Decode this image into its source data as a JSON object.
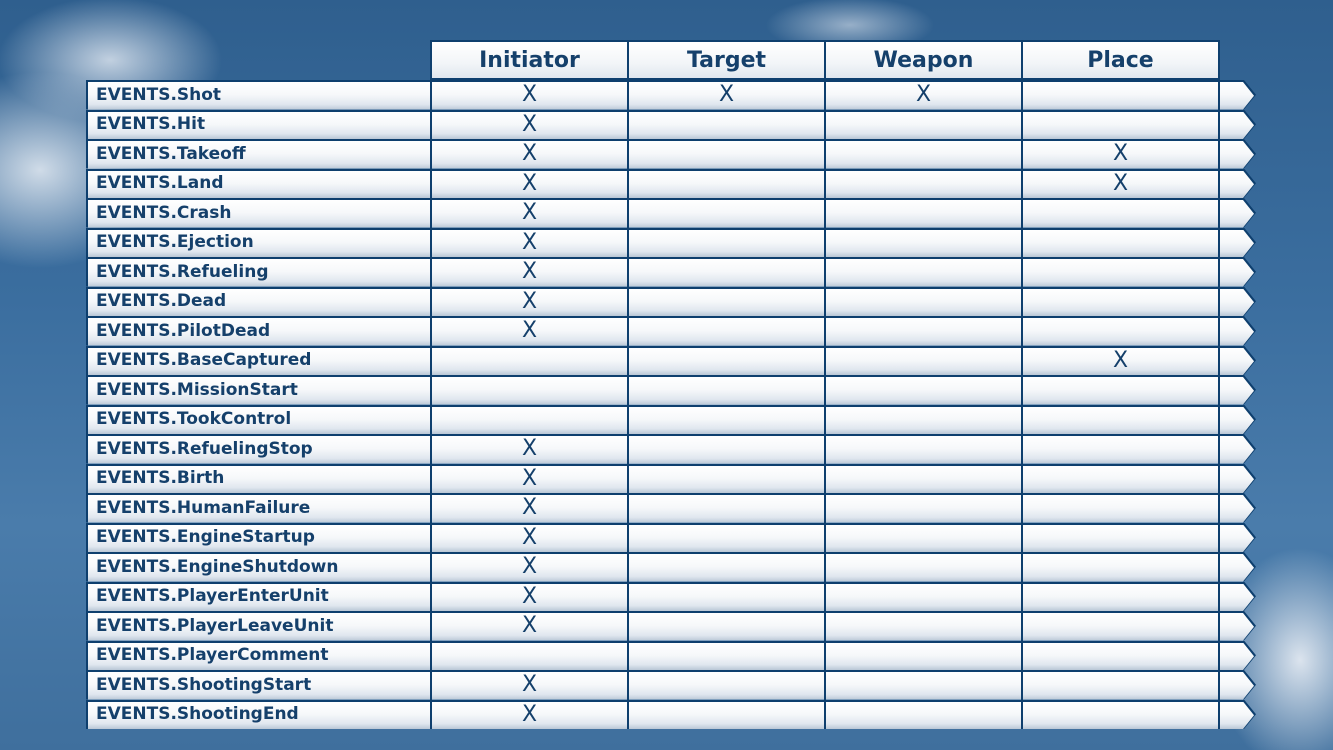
{
  "columns": [
    "Initiator",
    "Target",
    "Weapon",
    "Place"
  ],
  "mark": "X",
  "colors": {
    "border": "#0e3f6e",
    "text": "#15406b",
    "sky": "#3b6e9f"
  },
  "rows": [
    {
      "event": "EVENTS.Shot",
      "initiator": "X",
      "target": "X",
      "weapon": "X",
      "place": ""
    },
    {
      "event": "EVENTS.Hit",
      "initiator": "X",
      "target": "",
      "weapon": "",
      "place": ""
    },
    {
      "event": "EVENTS.Takeoff",
      "initiator": "X",
      "target": "",
      "weapon": "",
      "place": "X"
    },
    {
      "event": "EVENTS.Land",
      "initiator": "X",
      "target": "",
      "weapon": "",
      "place": "X"
    },
    {
      "event": "EVENTS.Crash",
      "initiator": "X",
      "target": "",
      "weapon": "",
      "place": ""
    },
    {
      "event": "EVENTS.Ejection",
      "initiator": "X",
      "target": "",
      "weapon": "",
      "place": ""
    },
    {
      "event": "EVENTS.Refueling",
      "initiator": "X",
      "target": "",
      "weapon": "",
      "place": ""
    },
    {
      "event": "EVENTS.Dead",
      "initiator": "X",
      "target": "",
      "weapon": "",
      "place": ""
    },
    {
      "event": "EVENTS.PilotDead",
      "initiator": "X",
      "target": "",
      "weapon": "",
      "place": ""
    },
    {
      "event": "EVENTS.BaseCaptured",
      "initiator": "",
      "target": "",
      "weapon": "",
      "place": "X"
    },
    {
      "event": "EVENTS.MissionStart",
      "initiator": "",
      "target": "",
      "weapon": "",
      "place": ""
    },
    {
      "event": "EVENTS.TookControl",
      "initiator": "",
      "target": "",
      "weapon": "",
      "place": ""
    },
    {
      "event": "EVENTS.RefuelingStop",
      "initiator": "X",
      "target": "",
      "weapon": "",
      "place": ""
    },
    {
      "event": "EVENTS.Birth",
      "initiator": "X",
      "target": "",
      "weapon": "",
      "place": ""
    },
    {
      "event": "EVENTS.HumanFailure",
      "initiator": "X",
      "target": "",
      "weapon": "",
      "place": ""
    },
    {
      "event": "EVENTS.EngineStartup",
      "initiator": "X",
      "target": "",
      "weapon": "",
      "place": ""
    },
    {
      "event": "EVENTS.EngineShutdown",
      "initiator": "X",
      "target": "",
      "weapon": "",
      "place": ""
    },
    {
      "event": "EVENTS.PlayerEnterUnit",
      "initiator": "X",
      "target": "",
      "weapon": "",
      "place": ""
    },
    {
      "event": "EVENTS.PlayerLeaveUnit",
      "initiator": "X",
      "target": "",
      "weapon": "",
      "place": ""
    },
    {
      "event": "EVENTS.PlayerComment",
      "initiator": "",
      "target": "",
      "weapon": "",
      "place": ""
    },
    {
      "event": "EVENTS.ShootingStart",
      "initiator": "X",
      "target": "",
      "weapon": "",
      "place": ""
    },
    {
      "event": "EVENTS.ShootingEnd",
      "initiator": "X",
      "target": "",
      "weapon": "",
      "place": ""
    }
  ]
}
